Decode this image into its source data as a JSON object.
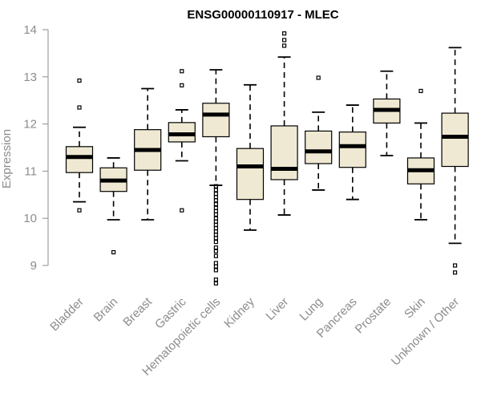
{
  "chart_data": {
    "type": "boxplot",
    "title": "ENSG00000110917 - MLEC",
    "xlabel": "",
    "ylabel": "Expression",
    "ylim": [
      8.5,
      14.1
    ],
    "yticks": [
      9,
      10,
      11,
      12,
      13,
      14
    ],
    "box_fill": "#efe9d3",
    "median_color": "#000000",
    "axis_color": "#8c8c8c",
    "categories": [
      {
        "name": "Bladder",
        "whisker_low": 10.35,
        "q1": 10.97,
        "median": 11.3,
        "q3": 11.52,
        "whisker_high": 11.93,
        "outliers": [
          10.17,
          12.35,
          12.92
        ]
      },
      {
        "name": "Brain",
        "whisker_low": 9.97,
        "q1": 10.57,
        "median": 10.8,
        "q3": 11.07,
        "whisker_high": 11.28,
        "outliers": [
          9.28
        ]
      },
      {
        "name": "Breast",
        "whisker_low": 9.97,
        "q1": 11.02,
        "median": 11.45,
        "q3": 11.88,
        "whisker_high": 12.75,
        "outliers": []
      },
      {
        "name": "Gastric",
        "whisker_low": 11.22,
        "q1": 11.62,
        "median": 11.78,
        "q3": 12.03,
        "whisker_high": 12.3,
        "outliers": [
          10.17,
          12.82,
          13.12
        ]
      },
      {
        "name": "Hematopoietic cells",
        "whisker_low": 10.7,
        "q1": 11.73,
        "median": 12.2,
        "q3": 12.44,
        "whisker_high": 13.15,
        "outliers": [
          10.68,
          10.6,
          10.52,
          10.45,
          10.38,
          10.3,
          10.22,
          10.15,
          10.08,
          10.0,
          9.93,
          9.86,
          9.79,
          9.72,
          9.65,
          9.58,
          9.5,
          9.38,
          9.3,
          9.2,
          9.05,
          8.98,
          8.9,
          8.7,
          8.62
        ]
      },
      {
        "name": "Kidney",
        "whisker_low": 9.75,
        "q1": 10.4,
        "median": 11.1,
        "q3": 11.48,
        "whisker_high": 12.83,
        "outliers": []
      },
      {
        "name": "Liver",
        "whisker_low": 10.07,
        "q1": 10.82,
        "median": 11.05,
        "q3": 11.96,
        "whisker_high": 13.42,
        "outliers": [
          13.66,
          13.78,
          13.92
        ]
      },
      {
        "name": "Lung",
        "whisker_low": 10.6,
        "q1": 11.16,
        "median": 11.42,
        "q3": 11.85,
        "whisker_high": 12.25,
        "outliers": [
          12.98
        ]
      },
      {
        "name": "Pancreas",
        "whisker_low": 10.4,
        "q1": 11.08,
        "median": 11.53,
        "q3": 11.83,
        "whisker_high": 12.4,
        "outliers": []
      },
      {
        "name": "Prostate",
        "whisker_low": 11.33,
        "q1": 12.02,
        "median": 12.3,
        "q3": 12.53,
        "whisker_high": 13.12,
        "outliers": []
      },
      {
        "name": "Skin",
        "whisker_low": 9.97,
        "q1": 10.73,
        "median": 11.02,
        "q3": 11.28,
        "whisker_high": 12.02,
        "outliers": [
          12.7
        ]
      },
      {
        "name": "Unknown / Other",
        "whisker_low": 9.47,
        "q1": 11.1,
        "median": 11.73,
        "q3": 12.23,
        "whisker_high": 13.62,
        "outliers": [
          9.0,
          8.85
        ]
      }
    ]
  }
}
